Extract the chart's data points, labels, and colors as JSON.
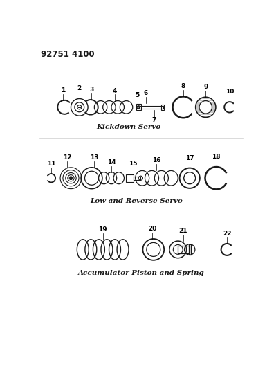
{
  "title": "92751 4100",
  "background_color": "#ffffff",
  "line_color": "#1a1a1a",
  "section1_label": "Kickdown Servo",
  "section2_label": "Low and Reverse Servo",
  "section3_label": "Accumulator Piston and Spring",
  "s1y": 415,
  "s2y": 282,
  "s3y": 405,
  "label_fontsize": 6.5,
  "title_fontsize": 8.5,
  "italic_fontsize": 7.5
}
